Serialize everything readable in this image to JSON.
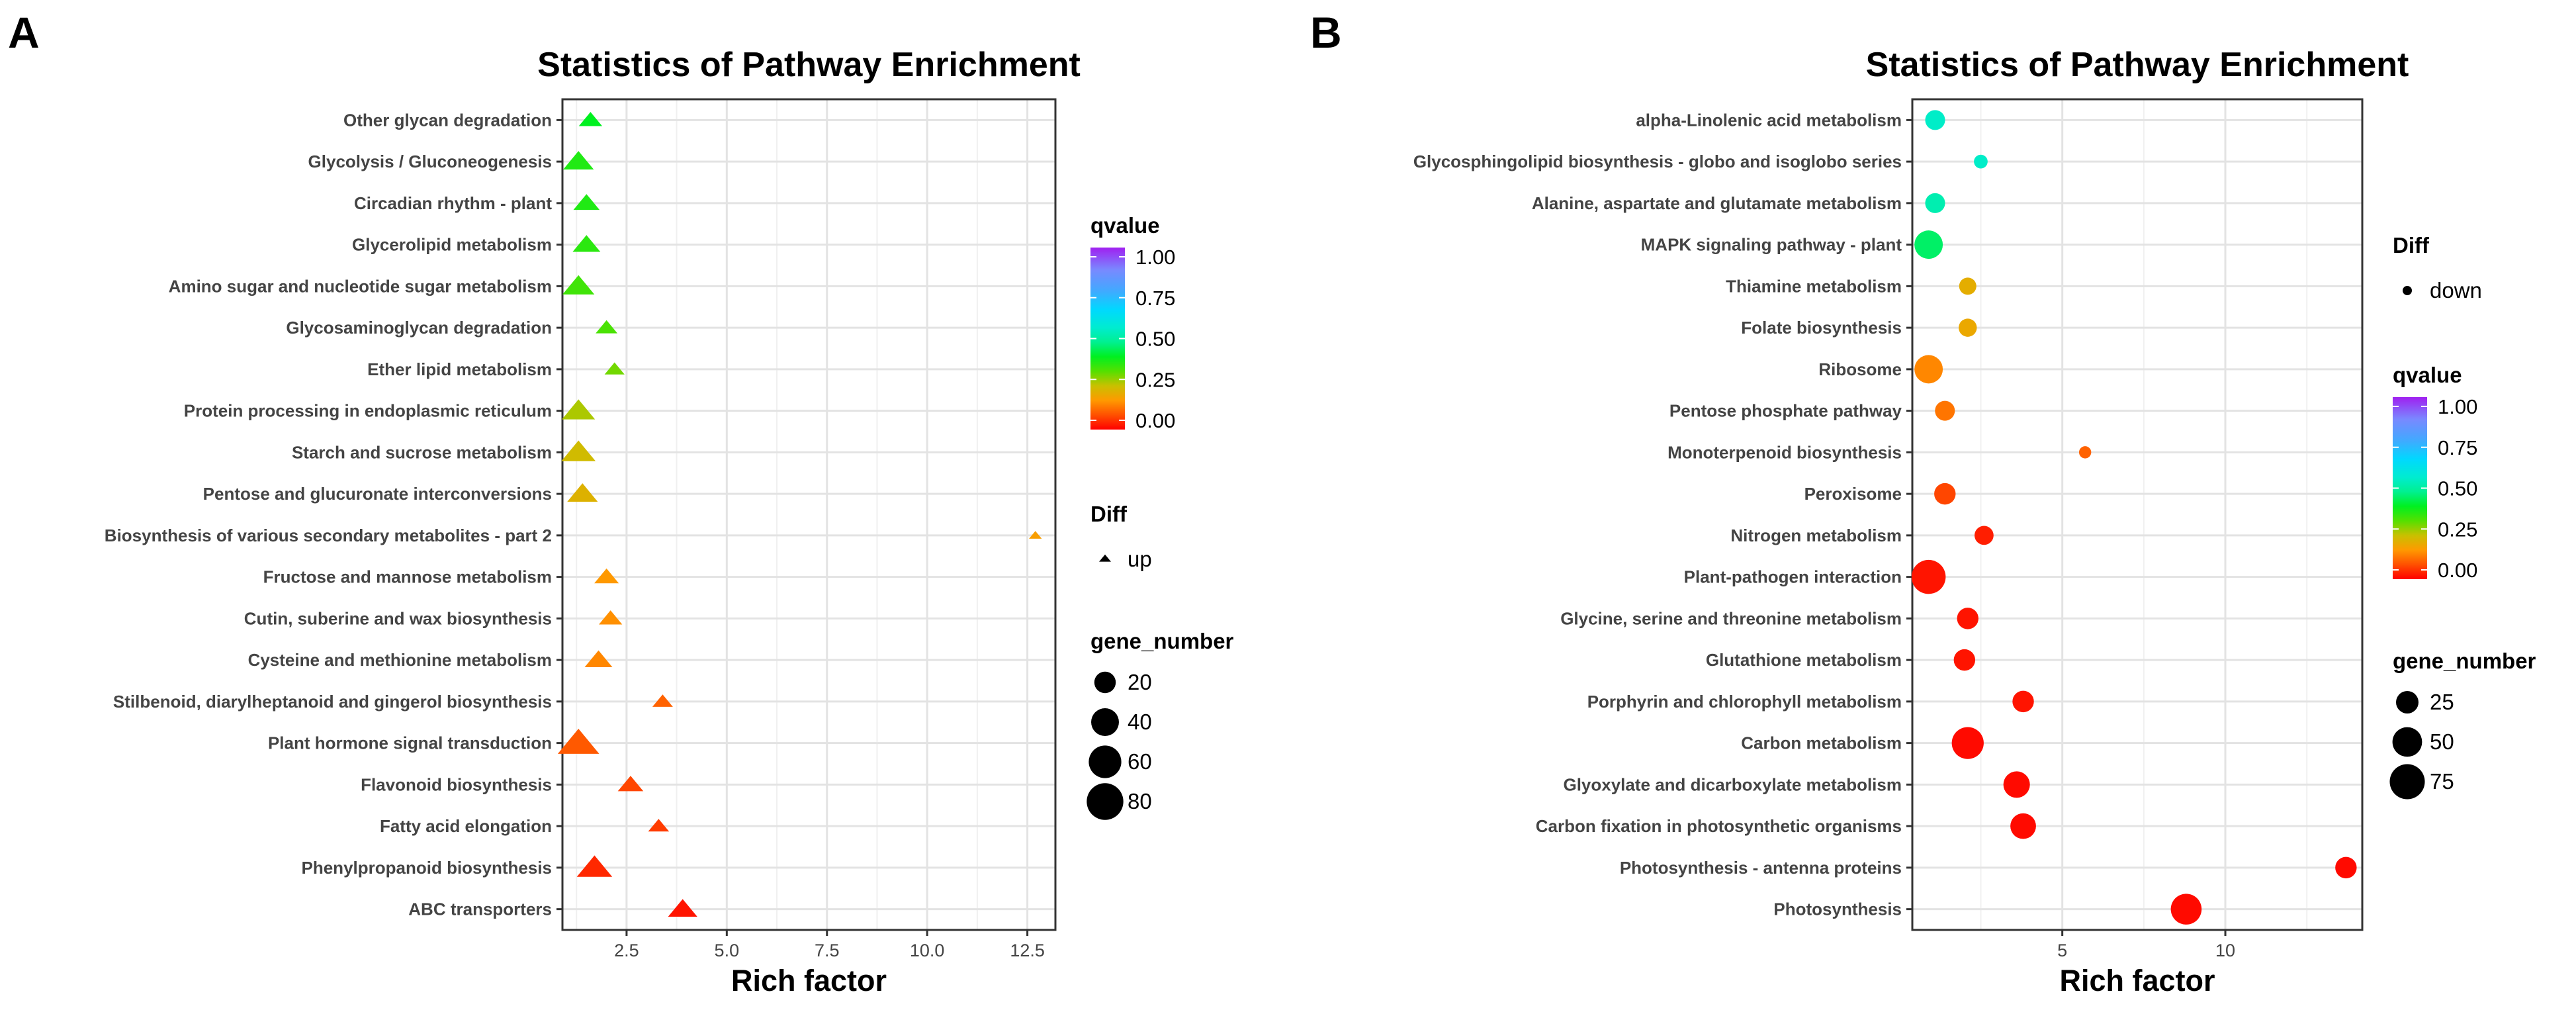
{
  "panel_letters": [
    "A",
    "B"
  ],
  "chart_data": [
    {
      "type": "scatter",
      "panel": "A",
      "title": "Statistics of Pathway Enrichment",
      "xlabel": "Rich factor",
      "ylabel": "",
      "xlim": [
        0.9,
        13.2
      ],
      "xticks": [
        2.5,
        5.0,
        7.5,
        10.0,
        12.5
      ],
      "xtick_labels": [
        "2.5",
        "5.0",
        "7.5",
        "10.0",
        "12.5"
      ],
      "grid": true,
      "legend_position": "right",
      "marker": "triangle",
      "categories": [
        "Other glycan degradation",
        "Glycolysis / Gluconeogenesis",
        "Circadian rhythm - plant",
        "Glycerolipid metabolism",
        "Amino sugar and nucleotide sugar metabolism",
        "Glycosaminoglycan degradation",
        "Ether lipid metabolism",
        "Protein processing in endoplasmic reticulum",
        "Starch and sucrose metabolism",
        "Pentose and glucuronate interconversions",
        "Biosynthesis of various secondary metabolites - part 2",
        "Fructose and mannose metabolism",
        "Cutin, suberine and wax biosynthesis",
        "Cysteine and methionine metabolism",
        "Stilbenoid, diarylheptanoid and gingerol biosynthesis",
        "Plant hormone signal transduction",
        "Flavonoid biosynthesis",
        "Fatty acid elongation",
        "Phenylpropanoid biosynthesis",
        "ABC transporters"
      ],
      "rich_factor": [
        1.6,
        1.3,
        1.5,
        1.5,
        1.3,
        2.0,
        2.2,
        1.3,
        1.3,
        1.4,
        12.7,
        2.0,
        2.1,
        1.8,
        3.4,
        1.3,
        2.6,
        3.3,
        1.7,
        3.9
      ],
      "qvalue": [
        0.4,
        0.37,
        0.37,
        0.36,
        0.34,
        0.33,
        0.3,
        0.26,
        0.23,
        0.21,
        0.17,
        0.16,
        0.15,
        0.14,
        0.1,
        0.09,
        0.07,
        0.06,
        0.04,
        0.02
      ],
      "gene_number": [
        22,
        45,
        30,
        35,
        50,
        18,
        14,
        55,
        60,
        45,
        3,
        25,
        22,
        35,
        15,
        95,
        28,
        16,
        65,
        40
      ],
      "diff": "up",
      "legend": {
        "qvalue_title": "qvalue",
        "qvalue_ticks": [
          "1.00",
          "0.75",
          "0.50",
          "0.25",
          "0.00"
        ],
        "diff_title": "Diff",
        "diff_label": "up",
        "size_title": "gene_number",
        "size_values": [
          20,
          40,
          60,
          80
        ],
        "size_labels": [
          "20",
          "40",
          "60",
          "80"
        ]
      }
    },
    {
      "type": "scatter",
      "panel": "B",
      "title": "Statistics of Pathway Enrichment",
      "xlabel": "Rich factor",
      "ylabel": "",
      "xlim": [
        0.4,
        14.2
      ],
      "xticks": [
        5,
        10
      ],
      "xtick_labels": [
        "5",
        "10"
      ],
      "grid": true,
      "legend_position": "right",
      "marker": "circle",
      "categories": [
        "alpha-Linolenic acid metabolism",
        "Glycosphingolipid biosynthesis - globo and isoglobo series",
        "Alanine, aspartate and glutamate metabolism",
        "MAPK signaling pathway - plant",
        "Thiamine metabolism",
        "Folate biosynthesis",
        "Ribosome",
        "Pentose phosphate pathway",
        "Monoterpenoid biosynthesis",
        "Peroxisome",
        "Nitrogen metabolism",
        "Plant-pathogen interaction",
        "Glycine, serine and threonine metabolism",
        "Glutathione metabolism",
        "Porphyrin and chlorophyll metabolism",
        "Carbon metabolism",
        "Glyoxylate and dicarboxylate metabolism",
        "Carbon fixation in photosynthetic organisms",
        "Photosynthesis - antenna proteins",
        "Photosynthesis"
      ],
      "rich_factor": [
        1.1,
        2.5,
        1.1,
        0.9,
        2.1,
        2.1,
        0.9,
        1.4,
        5.7,
        1.4,
        2.6,
        0.9,
        2.1,
        2.0,
        3.8,
        2.1,
        3.6,
        3.8,
        13.7,
        8.8
      ],
      "qvalue": [
        0.55,
        0.55,
        0.52,
        0.45,
        0.2,
        0.19,
        0.14,
        0.12,
        0.1,
        0.07,
        0.03,
        0.02,
        0.02,
        0.02,
        0.02,
        0.01,
        0.01,
        0.01,
        0.01,
        0.01
      ],
      "gene_number": [
        18,
        6,
        18,
        45,
        12,
        14,
        45,
        18,
        4,
        22,
        16,
        70,
        22,
        22,
        22,
        60,
        38,
        35,
        22,
        55
      ],
      "diff": "down",
      "legend": {
        "diff_title": "Diff",
        "diff_label": "down",
        "qvalue_title": "qvalue",
        "qvalue_ticks": [
          "1.00",
          "0.75",
          "0.50",
          "0.25",
          "0.00"
        ],
        "size_title": "gene_number",
        "size_values": [
          25,
          50,
          75
        ],
        "size_labels": [
          "25",
          "50",
          "75"
        ]
      }
    }
  ]
}
